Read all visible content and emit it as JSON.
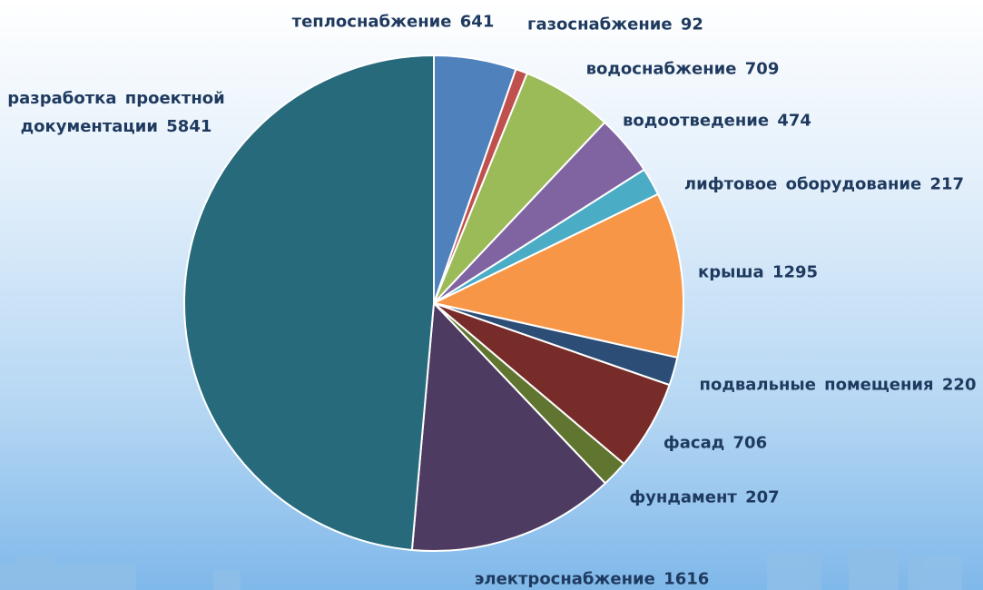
{
  "chart_data": {
    "type": "pie",
    "categories": [
      "теплоснабжение",
      "газоснабжение",
      "водоснабжение",
      "водоотведение",
      "лифтовое оборудование",
      "крыша",
      "подвальные помещения",
      "фасад",
      "фундамент",
      "электроснабжение",
      "разработка проектной документации"
    ],
    "values": [
      641,
      92,
      709,
      474,
      217,
      1295,
      220,
      706,
      207,
      1616,
      5841
    ],
    "colors": [
      "#4f81bd",
      "#c0504d",
      "#9bbb59",
      "#8064a2",
      "#4bacc6",
      "#f79646",
      "#2c4d75",
      "#772c2a",
      "#5f7530",
      "#4d3b62",
      "#276a7c"
    ]
  }
}
